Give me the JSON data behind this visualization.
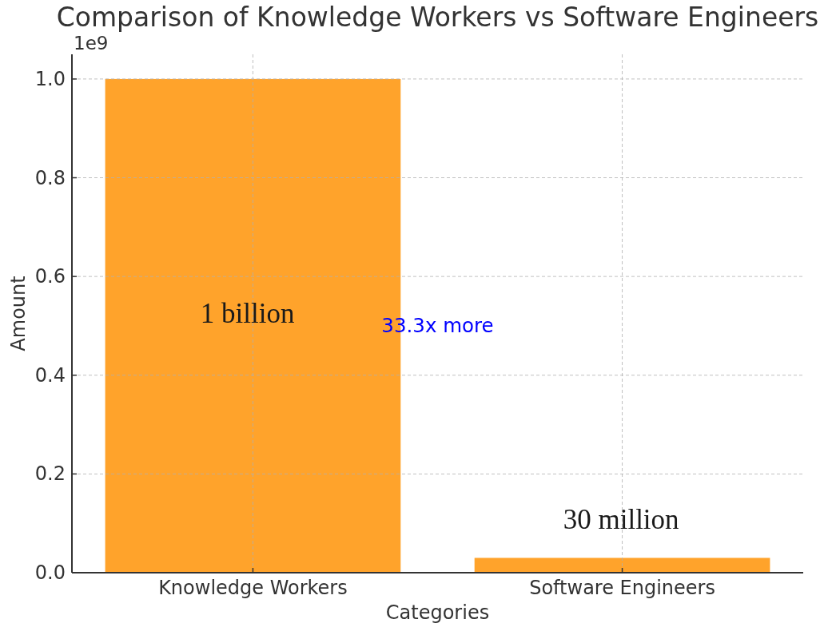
{
  "chart_data": {
    "type": "bar",
    "title": "Comparison of Knowledge Workers vs Software Engineers",
    "xlabel": "Categories",
    "ylabel": "Amount",
    "categories": [
      "Knowledge Workers",
      "Software Engineers"
    ],
    "values": [
      1.0,
      0.03
    ],
    "color": "#ffa32b",
    "ylim": [
      0,
      1.05
    ],
    "yticks": [
      {
        "value": 0,
        "label": "0.0"
      },
      {
        "value": 0.2,
        "label": "0.2"
      },
      {
        "value": 0.4,
        "label": "0.4"
      },
      {
        "value": 0.6,
        "label": "0.6"
      },
      {
        "value": 0.8,
        "label": "0.8"
      },
      {
        "value": 1,
        "label": "1.0"
      }
    ],
    "grid": true,
    "annotations": [
      "1e9",
      "1 billion",
      "33.3x more",
      "30 million"
    ]
  }
}
